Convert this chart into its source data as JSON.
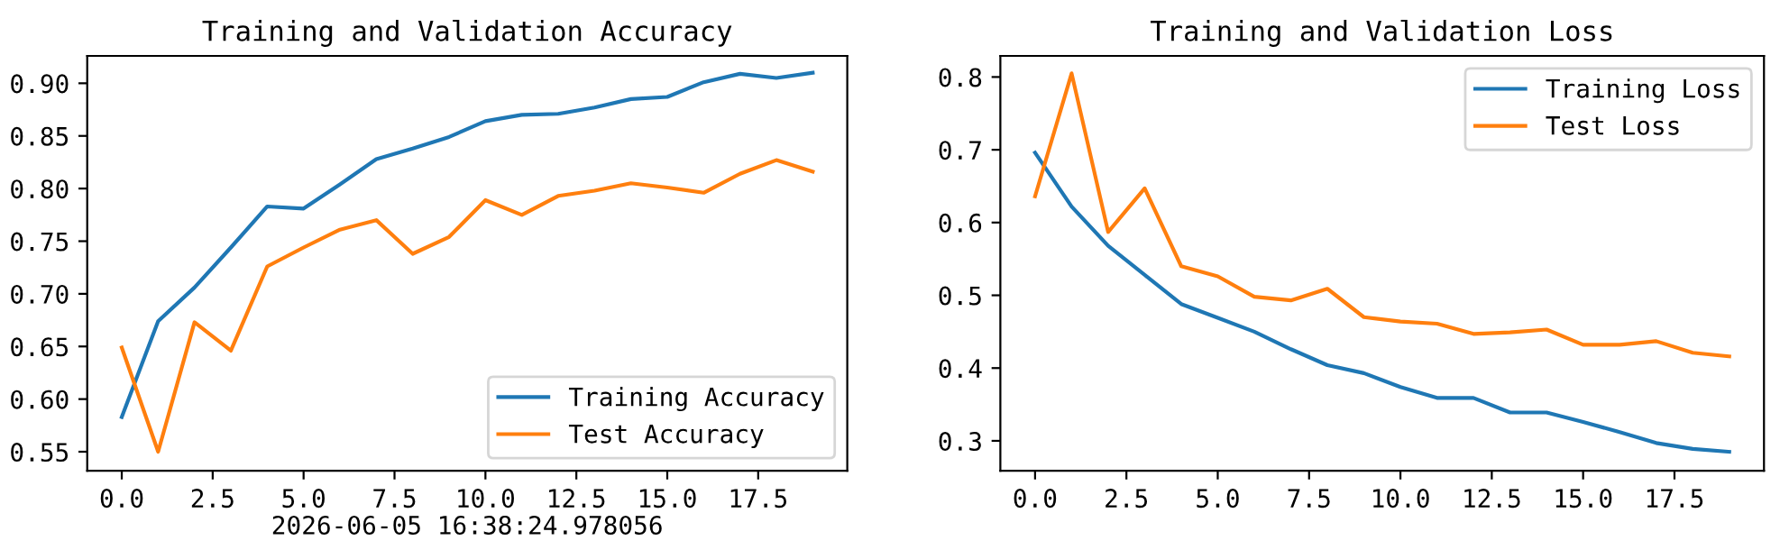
{
  "chart_data": [
    {
      "type": "line",
      "title": "Training and Validation Accuracy",
      "xlabel": "2026-06-05 16:38:24.978056",
      "x": [
        0,
        1,
        2,
        3,
        4,
        5,
        6,
        7,
        8,
        9,
        10,
        11,
        12,
        13,
        14,
        15,
        16,
        17,
        18,
        19
      ],
      "series": [
        {
          "name": "Training Accuracy",
          "color": "#1f77b4",
          "values": [
            0.583,
            0.674,
            0.706,
            0.744,
            0.783,
            0.781,
            0.804,
            0.828,
            0.838,
            0.849,
            0.864,
            0.87,
            0.871,
            0.877,
            0.885,
            0.887,
            0.901,
            0.909,
            0.905,
            0.91
          ]
        },
        {
          "name": "Test Accuracy",
          "color": "#ff7f0e",
          "values": [
            0.649,
            0.55,
            0.673,
            0.646,
            0.726,
            0.744,
            0.761,
            0.77,
            0.738,
            0.754,
            0.789,
            0.775,
            0.793,
            0.798,
            0.805,
            0.801,
            0.796,
            0.814,
            0.827,
            0.816
          ]
        }
      ],
      "xlim": [
        -0.95,
        19.95
      ],
      "xticks": [
        {
          "value": 0,
          "label": "0.0"
        },
        {
          "value": 2.5,
          "label": "2.5"
        },
        {
          "value": 5,
          "label": "5.0"
        },
        {
          "value": 7.5,
          "label": "7.5"
        },
        {
          "value": 10,
          "label": "10.0"
        },
        {
          "value": 12.5,
          "label": "12.5"
        },
        {
          "value": 15,
          "label": "15.0"
        },
        {
          "value": 17.5,
          "label": "17.5"
        }
      ],
      "ylim": [
        0.532,
        0.926
      ],
      "yticks": [
        {
          "value": 0.55,
          "label": "0.55"
        },
        {
          "value": 0.6,
          "label": "0.60"
        },
        {
          "value": 0.65,
          "label": "0.65"
        },
        {
          "value": 0.7,
          "label": "0.70"
        },
        {
          "value": 0.75,
          "label": "0.75"
        },
        {
          "value": 0.8,
          "label": "0.80"
        },
        {
          "value": 0.85,
          "label": "0.85"
        },
        {
          "value": 0.9,
          "label": "0.90"
        }
      ],
      "legend": "bottom right",
      "grid": false
    },
    {
      "type": "line",
      "title": "Training and Validation Loss",
      "x": [
        0,
        1,
        2,
        3,
        4,
        5,
        6,
        7,
        8,
        9,
        10,
        11,
        12,
        13,
        14,
        15,
        16,
        17,
        18,
        19
      ],
      "series": [
        {
          "name": "Training Loss",
          "color": "#1f77b4",
          "values": [
            0.696,
            0.622,
            0.568,
            0.528,
            0.488,
            0.469,
            0.45,
            0.426,
            0.404,
            0.393,
            0.374,
            0.359,
            0.359,
            0.339,
            0.339,
            0.326,
            0.312,
            0.297,
            0.289,
            0.285
          ]
        },
        {
          "name": "Test Loss",
          "color": "#ff7f0e",
          "values": [
            0.636,
            0.805,
            0.587,
            0.647,
            0.54,
            0.526,
            0.498,
            0.493,
            0.509,
            0.47,
            0.464,
            0.461,
            0.447,
            0.449,
            0.453,
            0.432,
            0.432,
            0.437,
            0.421,
            0.416
          ]
        }
      ],
      "xlim": [
        -0.95,
        19.95
      ],
      "xticks": [
        {
          "value": 0,
          "label": "0.0"
        },
        {
          "value": 2.5,
          "label": "2.5"
        },
        {
          "value": 5,
          "label": "5.0"
        },
        {
          "value": 7.5,
          "label": "7.5"
        },
        {
          "value": 10,
          "label": "10.0"
        },
        {
          "value": 12.5,
          "label": "12.5"
        },
        {
          "value": 15,
          "label": "15.0"
        },
        {
          "value": 17.5,
          "label": "17.5"
        }
      ],
      "ylim": [
        0.259,
        0.829
      ],
      "yticks": [
        0.3,
        0.4,
        0.5,
        0.6,
        0.7,
        0.8
      ],
      "legend": "top right",
      "grid": false
    }
  ]
}
